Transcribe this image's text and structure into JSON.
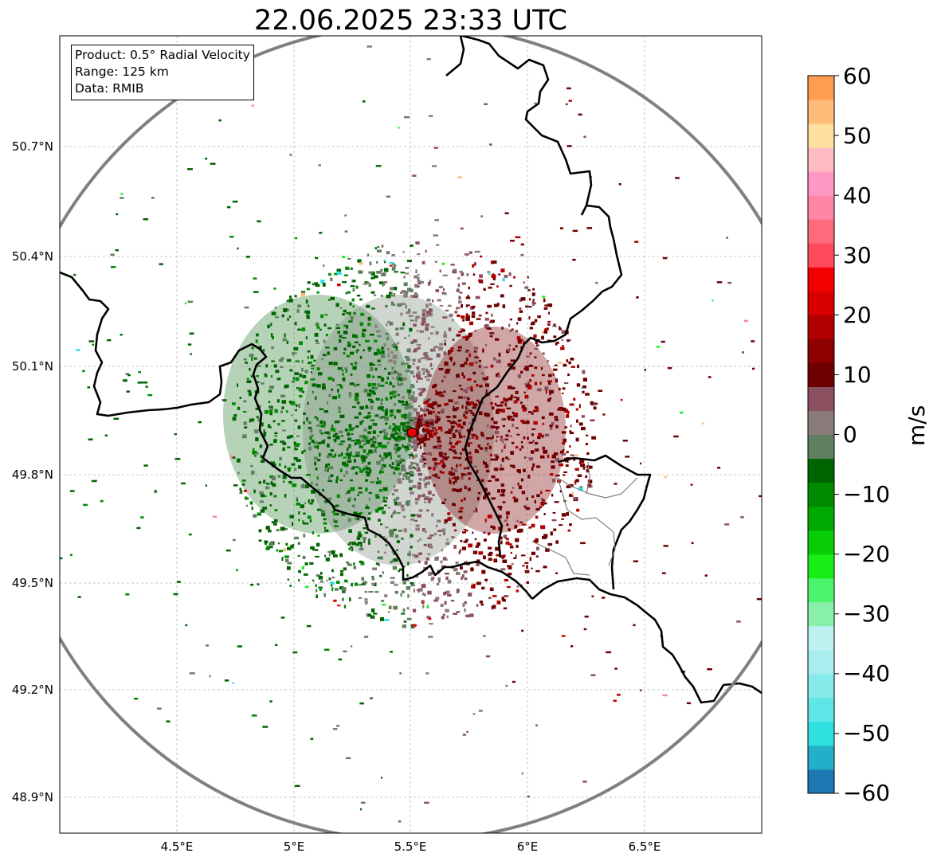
{
  "title": "22.06.2025 23:33 UTC",
  "info_box": {
    "product": "Product: 0.5° Radial Velocity",
    "range": "Range: 125 km",
    "data": "Data: RMIB"
  },
  "map": {
    "x_ticks": [
      "4.5°E",
      "5°E",
      "5.5°E",
      "6°E",
      "6.5°E"
    ],
    "y_ticks": [
      "50.7°N",
      "50.4°N",
      "50.1°N",
      "49.8°N",
      "49.5°N",
      "49.2°N",
      "48.9°N"
    ],
    "radar_site_color": "#e8000b",
    "range_ring_color": "#808080",
    "border_color": "#000000",
    "grid": true
  },
  "colorbar": {
    "unit": "m/s",
    "min": -60,
    "max": 60,
    "tick_labels": [
      "60",
      "50",
      "40",
      "30",
      "20",
      "10",
      "0",
      "−10",
      "−20",
      "−30",
      "−40",
      "−50",
      "−60"
    ],
    "bands": [
      {
        "from": -60,
        "to": -56,
        "color": "#1f77b4"
      },
      {
        "from": -56,
        "to": -52,
        "color": "#22b0c8"
      },
      {
        "from": -52,
        "to": -48,
        "color": "#2ee0e0"
      },
      {
        "from": -48,
        "to": -44,
        "color": "#5ee6e6"
      },
      {
        "from": -44,
        "to": -40,
        "color": "#86eaea"
      },
      {
        "from": -40,
        "to": -36,
        "color": "#a8eeee"
      },
      {
        "from": -36,
        "to": -32,
        "color": "#bef2f2"
      },
      {
        "from": -32,
        "to": -28,
        "color": "#88f0a8"
      },
      {
        "from": -28,
        "to": -24,
        "color": "#4cf46c"
      },
      {
        "from": -24,
        "to": -20,
        "color": "#16ee16"
      },
      {
        "from": -20,
        "to": -16,
        "color": "#08cc08"
      },
      {
        "from": -16,
        "to": -12,
        "color": "#00a800"
      },
      {
        "from": -12,
        "to": -8,
        "color": "#008a00"
      },
      {
        "from": -8,
        "to": -4,
        "color": "#006400"
      },
      {
        "from": -4,
        "to": 0,
        "color": "#5e8060"
      },
      {
        "from": 0,
        "to": 4,
        "color": "#8a7a7a"
      },
      {
        "from": 4,
        "to": 8,
        "color": "#8a5060"
      },
      {
        "from": 8,
        "to": 12,
        "color": "#6e0000"
      },
      {
        "from": 12,
        "to": 16,
        "color": "#8c0000"
      },
      {
        "from": 16,
        "to": 20,
        "color": "#b00000"
      },
      {
        "from": 20,
        "to": 24,
        "color": "#d80000"
      },
      {
        "from": 24,
        "to": 28,
        "color": "#f40000"
      },
      {
        "from": 28,
        "to": 32,
        "color": "#ff4a5c"
      },
      {
        "from": 32,
        "to": 36,
        "color": "#ff6a7c"
      },
      {
        "from": 36,
        "to": 40,
        "color": "#ff86a6"
      },
      {
        "from": 40,
        "to": 44,
        "color": "#ff98c4"
      },
      {
        "from": 44,
        "to": 48,
        "color": "#ffbcc0"
      },
      {
        "from": 48,
        "to": 52,
        "color": "#ffe0a0"
      },
      {
        "from": 52,
        "to": 56,
        "color": "#ffbc78"
      },
      {
        "from": 56,
        "to": 60,
        "color": "#ff9c50"
      }
    ]
  }
}
